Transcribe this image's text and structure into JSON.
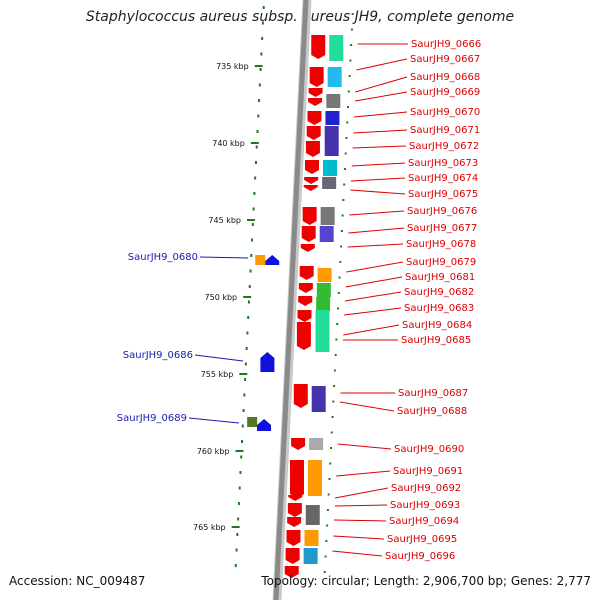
{
  "title": "Staphylococcus aureus subsp. aureus JH9, complete genome",
  "footer": {
    "accession": "Accession: NC_009487",
    "topology": "Topology: circular; Length: 2,906,700 bp; Genes: 2,777"
  },
  "colors": {
    "backbone": "#8a8a8a",
    "tick": "#1f7a1f",
    "gene": "#ee0000",
    "label_right": "#dd0000",
    "label_left": "#1a1aaa"
  },
  "scale": {
    "ticks": [
      "735 kbp",
      "740 kbp",
      "745 kbp",
      "750 kbp",
      "755 kbp",
      "760 kbp",
      "765 kbp"
    ]
  },
  "genes_right": [
    "SaurJH9_0666",
    "SaurJH9_0667",
    "SaurJH9_0668",
    "SaurJH9_0669",
    "SaurJH9_0670",
    "SaurJH9_0671",
    "SaurJH9_0672",
    "SaurJH9_0673",
    "SaurJH9_0674",
    "SaurJH9_0675",
    "SaurJH9_0676",
    "SaurJH9_0677",
    "SaurJH9_0678",
    "SaurJH9_0679",
    "SaurJH9_0681",
    "SaurJH9_0682",
    "SaurJH9_0683",
    "SaurJH9_0684",
    "SaurJH9_0685",
    "SaurJH9_0687",
    "SaurJH9_0688",
    "SaurJH9_0690",
    "SaurJH9_0691",
    "SaurJH9_0692",
    "SaurJH9_0693",
    "SaurJH9_0694",
    "SaurJH9_0695",
    "SaurJH9_0696"
  ],
  "genes_left": [
    "SaurJH9_0680",
    "SaurJH9_0686",
    "SaurJH9_0689"
  ]
}
